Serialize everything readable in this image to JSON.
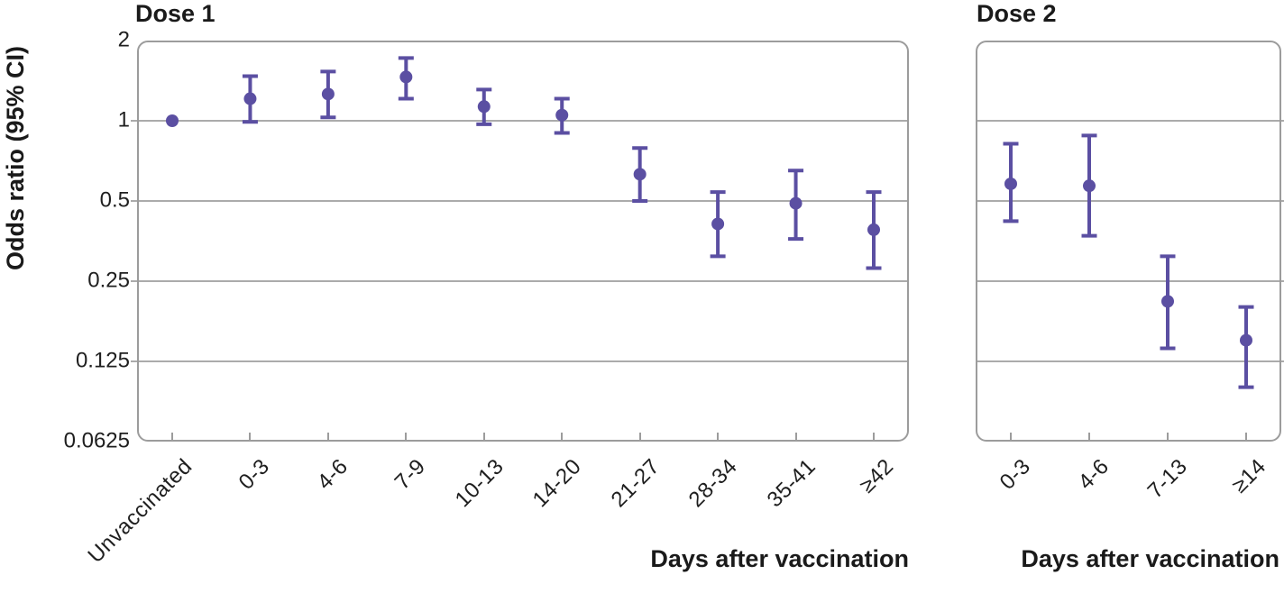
{
  "figure": {
    "y_axis_label": "Odds ratio (95% CI)",
    "background": "#ffffff",
    "colors": {
      "marker": "#5b4fa2",
      "gridline": "#ababab",
      "panel_border": "#9c9c9c",
      "text": "#1a1a1a"
    }
  },
  "chart_data": [
    {
      "type": "scatter",
      "title": "Dose 1",
      "xlabel": "Days after vaccination",
      "ylabel": "Odds ratio (95% CI)",
      "y_scale": "log2",
      "ylim": [
        0.0625,
        2
      ],
      "yticks": [
        2,
        1,
        0.5,
        0.25,
        0.125,
        0.0625
      ],
      "gridline_values": [
        1,
        0.5,
        0.25,
        0.125
      ],
      "grid": "horizontal-only",
      "legend": "none",
      "categories": [
        "Unvaccinated",
        "0-3",
        "4-6",
        "7-9",
        "10-13",
        "14-20",
        "21-27",
        "28-34",
        "35-41",
        "≥42"
      ],
      "series": [
        {
          "name": "Odds ratio (95% CI)",
          "points": [
            {
              "or": 1.0,
              "lo": null,
              "hi": null
            },
            {
              "or": 1.21,
              "lo": 0.99,
              "hi": 1.47
            },
            {
              "or": 1.26,
              "lo": 1.03,
              "hi": 1.53
            },
            {
              "or": 1.46,
              "lo": 1.21,
              "hi": 1.72
            },
            {
              "or": 1.13,
              "lo": 0.97,
              "hi": 1.31
            },
            {
              "or": 1.05,
              "lo": 0.9,
              "hi": 1.21
            },
            {
              "or": 0.63,
              "lo": 0.5,
              "hi": 0.79
            },
            {
              "or": 0.41,
              "lo": 0.31,
              "hi": 0.54
            },
            {
              "or": 0.49,
              "lo": 0.36,
              "hi": 0.65
            },
            {
              "or": 0.39,
              "lo": 0.28,
              "hi": 0.54
            }
          ]
        }
      ]
    },
    {
      "type": "scatter",
      "title": "Dose 2",
      "xlabel": "Days after vaccination",
      "ylabel": "Odds ratio (95% CI)",
      "y_scale": "log2",
      "ylim": [
        0.0625,
        2
      ],
      "yticks": [
        2,
        1,
        0.5,
        0.25,
        0.125,
        0.0625
      ],
      "gridline_values": [
        1,
        0.5,
        0.25,
        0.125
      ],
      "grid": "horizontal-only",
      "legend": "none",
      "categories": [
        "0-3",
        "4-6",
        "7-13",
        "≥14"
      ],
      "series": [
        {
          "name": "Odds ratio (95% CI)",
          "points": [
            {
              "or": 0.58,
              "lo": 0.42,
              "hi": 0.82
            },
            {
              "or": 0.57,
              "lo": 0.37,
              "hi": 0.88
            },
            {
              "or": 0.21,
              "lo": 0.14,
              "hi": 0.31
            },
            {
              "or": 0.15,
              "lo": 0.1,
              "hi": 0.2
            }
          ]
        }
      ]
    }
  ]
}
